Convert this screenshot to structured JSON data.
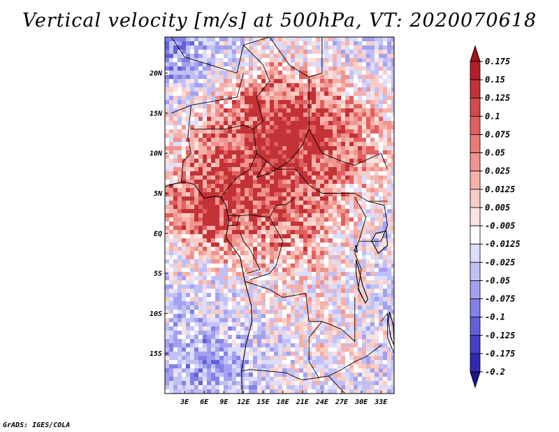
{
  "title": "Vertical velocity [m/s] at 500hPa, VT: 2020070618",
  "footer": "GrADS: IGES/COLA",
  "map": {
    "lat_labels": [
      {
        "lat": 20,
        "label": "20N"
      },
      {
        "lat": 15,
        "label": "15N"
      },
      {
        "lat": 10,
        "label": "10N"
      },
      {
        "lat": 5,
        "label": "5N"
      },
      {
        "lat": 0,
        "label": "EQ"
      },
      {
        "lat": -5,
        "label": "5S"
      },
      {
        "lat": -10,
        "label": "10S"
      },
      {
        "lat": -15,
        "label": "15S"
      }
    ],
    "lon_labels": [
      {
        "lon": 3,
        "label": "3E"
      },
      {
        "lon": 6,
        "label": "6E"
      },
      {
        "lon": 9,
        "label": "9E"
      },
      {
        "lon": 12,
        "label": "12E"
      },
      {
        "lon": 15,
        "label": "15E"
      },
      {
        "lon": 18,
        "label": "18E"
      },
      {
        "lon": 21,
        "label": "21E"
      },
      {
        "lon": 24,
        "label": "24E"
      },
      {
        "lon": 27,
        "label": "27E"
      },
      {
        "lon": 30,
        "label": "30E"
      },
      {
        "lon": 33,
        "label": "33E"
      }
    ],
    "lon_range": [
      0,
      35
    ],
    "lat_range": [
      -20,
      24.5
    ]
  },
  "colorbar": {
    "levels": [
      {
        "label": "0.175",
        "color": "#b51f2a"
      },
      {
        "label": "0.15",
        "color": "#c33236"
      },
      {
        "label": "0.125",
        "color": "#d34a4a"
      },
      {
        "label": "0.1",
        "color": "#e06060"
      },
      {
        "label": "0.075",
        "color": "#e87a78"
      },
      {
        "label": "0.05",
        "color": "#f0948f"
      },
      {
        "label": "0.025",
        "color": "#f6b1ab"
      },
      {
        "label": "0.0125",
        "color": "#f9ccc6"
      },
      {
        "label": "0.005",
        "color": "#fce3df"
      },
      {
        "label": "-0.005",
        "color": "#ffffff"
      },
      {
        "label": "-0.0125",
        "color": "#dcdcfb"
      },
      {
        "label": "-0.025",
        "color": "#c1c0f6"
      },
      {
        "label": "-0.05",
        "color": "#a3a1ef"
      },
      {
        "label": "-0.075",
        "color": "#8380e6"
      },
      {
        "label": "-0.1",
        "color": "#6360da"
      },
      {
        "label": "-0.125",
        "color": "#4740c8"
      },
      {
        "label": "-0.175",
        "color": "#2f28b0"
      },
      {
        "label": "-0.2",
        "color": "#201a98"
      }
    ],
    "top_arrow_color": "#a3141c",
    "bottom_arrow_color": "#1a1488"
  },
  "palette": {
    "background_blue": "#c6c5f2",
    "background_pink": "#f6c9c2"
  }
}
